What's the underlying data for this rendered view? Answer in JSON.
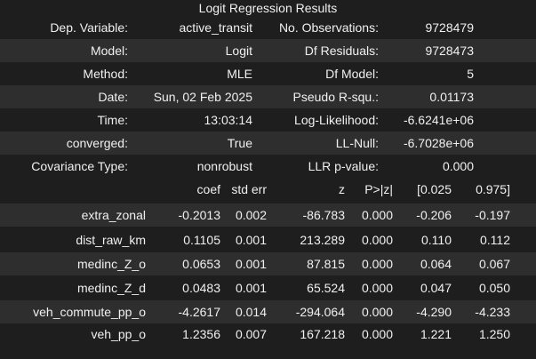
{
  "title": "Logit Regression Results",
  "summary": [
    {
      "label1": "Dep. Variable:",
      "value1": "active_transit",
      "label2": "No. Observations:",
      "value2": "9728479"
    },
    {
      "label1": "Model:",
      "value1": "Logit",
      "label2": "Df Residuals:",
      "value2": "9728473"
    },
    {
      "label1": "Method:",
      "value1": "MLE",
      "label2": "Df Model:",
      "value2": "5"
    },
    {
      "label1": "Date:",
      "value1": "Sun, 02 Feb 2025",
      "label2": "Pseudo R-squ.:",
      "value2": "0.01173"
    },
    {
      "label1": "Time:",
      "value1": "13:03:14",
      "label2": "Log-Likelihood:",
      "value2": "-6.6241e+06"
    },
    {
      "label1": "converged:",
      "value1": "True",
      "label2": "LL-Null:",
      "value2": "-6.7028e+06"
    },
    {
      "label1": "Covariance Type:",
      "value1": "nonrobust",
      "label2": "LLR p-value:",
      "value2": "0.000"
    }
  ],
  "coef_headers": [
    "coef",
    "std err",
    "z",
    "P>|z|",
    "[0.025",
    "0.975]"
  ],
  "coef_rows": [
    {
      "name": "extra_zonal",
      "coef": "-0.2013",
      "se": "0.002",
      "z": "-86.783",
      "p": "0.000",
      "lo": "-0.206",
      "hi": "-0.197"
    },
    {
      "name": "dist_raw_km",
      "coef": "0.1105",
      "se": "0.001",
      "z": "213.289",
      "p": "0.000",
      "lo": "0.110",
      "hi": "0.112"
    },
    {
      "name": "medinc_Z_o",
      "coef": "0.0653",
      "se": "0.001",
      "z": "87.815",
      "p": "0.000",
      "lo": "0.064",
      "hi": "0.067"
    },
    {
      "name": "medinc_Z_d",
      "coef": "0.0483",
      "se": "0.001",
      "z": "65.524",
      "p": "0.000",
      "lo": "0.047",
      "hi": "0.050"
    },
    {
      "name": "veh_commute_pp_o",
      "coef": "-4.2617",
      "se": "0.014",
      "z": "-294.064",
      "p": "0.000",
      "lo": "-4.290",
      "hi": "-4.233"
    },
    {
      "name": "veh_pp_o",
      "coef": "1.2356",
      "se": "0.007",
      "z": "167.218",
      "p": "0.000",
      "lo": "1.221",
      "hi": "1.250"
    }
  ]
}
